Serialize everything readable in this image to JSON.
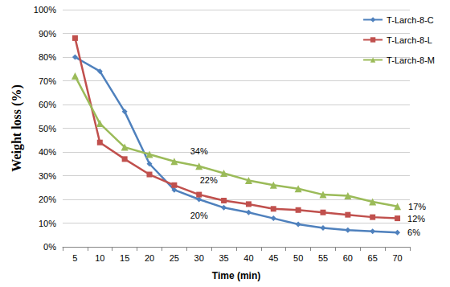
{
  "chart_data": {
    "type": "line",
    "x_label": "Time (min)",
    "y_label": "Weight loss (%)",
    "categories": [
      5,
      10,
      15,
      20,
      25,
      30,
      35,
      40,
      45,
      50,
      55,
      60,
      65,
      70
    ],
    "series": [
      {
        "name": "T-Larch-8-C",
        "color": "#4f81bd",
        "marker": "diamond",
        "values": [
          80,
          74,
          57,
          35,
          24,
          20,
          16.5,
          14.5,
          12,
          9.5,
          8,
          7,
          6.5,
          6
        ]
      },
      {
        "name": "T-Larch-8-L",
        "color": "#c0504d",
        "marker": "square",
        "values": [
          88,
          44,
          37,
          30.5,
          26,
          22,
          19.5,
          18,
          16,
          15.5,
          14.5,
          13.5,
          12.5,
          12
        ]
      },
      {
        "name": "T-Larch-8-M",
        "color": "#9bbb59",
        "marker": "triangle",
        "values": [
          72,
          52,
          42,
          39,
          36,
          34,
          31,
          28,
          26,
          24.5,
          22,
          21.5,
          19,
          17
        ]
      }
    ],
    "annotations": [
      {
        "series": "T-Larch-8-M",
        "x": 30,
        "text": "34%"
      },
      {
        "series": "T-Larch-8-L",
        "x": 30,
        "text": "22%"
      },
      {
        "series": "T-Larch-8-C",
        "x": 30,
        "text": "20%"
      },
      {
        "series": "T-Larch-8-M",
        "x": 70,
        "text": "17%"
      },
      {
        "series": "T-Larch-8-L",
        "x": 70,
        "text": "12%"
      },
      {
        "series": "T-Larch-8-C",
        "x": 70,
        "text": "6%"
      }
    ],
    "ylim": [
      0,
      100
    ],
    "yticks": [
      {
        "value": 0,
        "label": "0%"
      },
      {
        "value": 10,
        "label": "10%"
      },
      {
        "value": 20,
        "label": "20%"
      },
      {
        "value": 30,
        "label": "30%"
      },
      {
        "value": 40,
        "label": "40%"
      },
      {
        "value": 50,
        "label": "50%"
      },
      {
        "value": 60,
        "label": "60%"
      },
      {
        "value": 70,
        "label": "70%"
      },
      {
        "value": 80,
        "label": "80%"
      },
      {
        "value": 90,
        "label": "90%"
      },
      {
        "value": 100,
        "label": "100%"
      }
    ],
    "grid": true,
    "legend": "top-right"
  }
}
